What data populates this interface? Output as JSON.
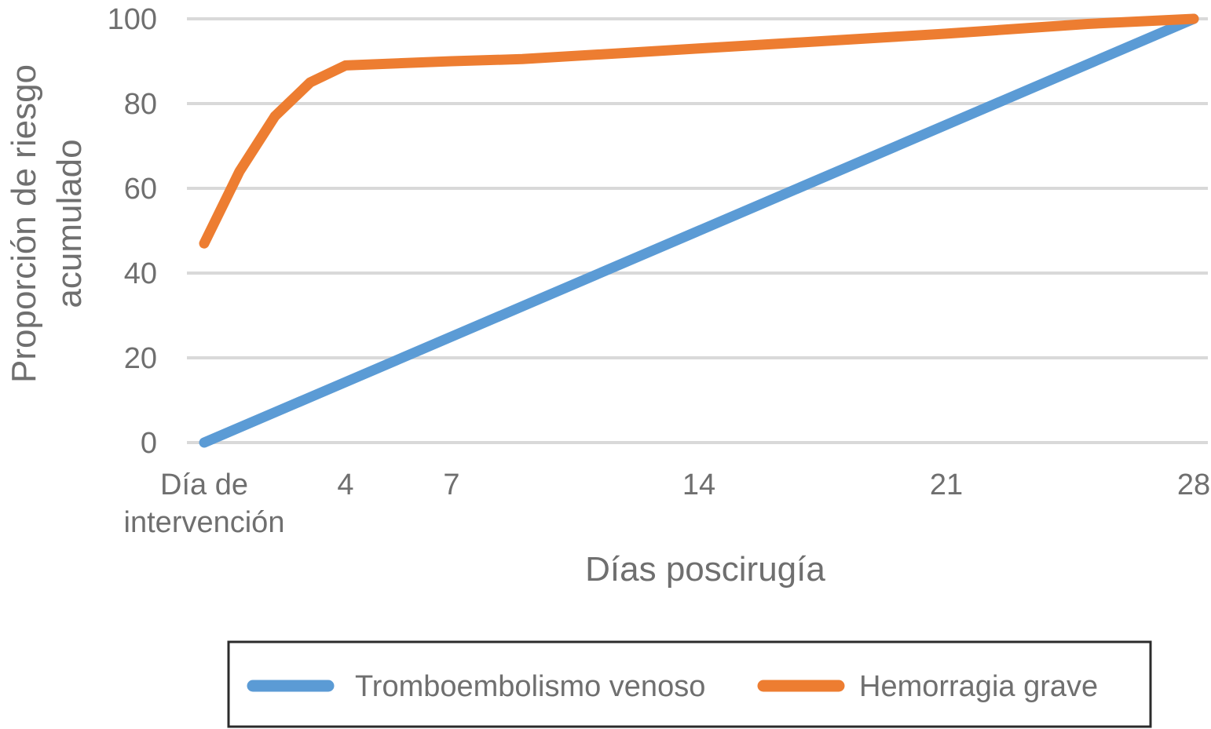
{
  "chart_data": {
    "type": "line",
    "title": "",
    "xlabel": "Días poscirugía",
    "ylabel": [
      "Proporción de riesgo",
      "acumulado"
    ],
    "ylim": [
      0,
      100
    ],
    "yticks": [
      0,
      20,
      40,
      60,
      80,
      100
    ],
    "xlim": [
      0,
      28
    ],
    "xticks": [
      {
        "x": 0,
        "label": [
          "Día de",
          "intervención"
        ]
      },
      {
        "x": 4,
        "label": [
          "4"
        ]
      },
      {
        "x": 7,
        "label": [
          "7"
        ]
      },
      {
        "x": 14,
        "label": [
          "14"
        ]
      },
      {
        "x": 21,
        "label": [
          "21"
        ]
      },
      {
        "x": 28,
        "label": [
          "28"
        ]
      }
    ],
    "grid": true,
    "legend_position": "bottom",
    "series": [
      {
        "name": "Tromboembolismo venoso",
        "color": "#5b9bd5",
        "x": [
          0,
          28
        ],
        "y": [
          0,
          100
        ]
      },
      {
        "name": "Hemorragia grave",
        "color": "#ed7d31",
        "x": [
          0,
          1,
          2,
          3,
          4,
          7,
          9,
          12,
          14,
          17,
          21,
          25,
          28
        ],
        "y": [
          47,
          64,
          77,
          85,
          89,
          90,
          90.5,
          92,
          93,
          94.5,
          96.5,
          98.8,
          100
        ]
      }
    ]
  }
}
